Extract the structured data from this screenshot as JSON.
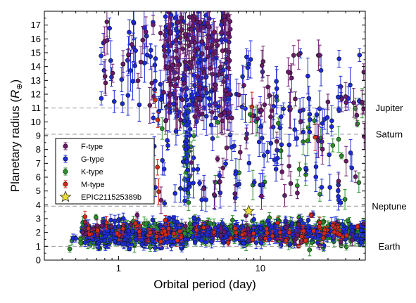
{
  "chart_data": {
    "type": "scatter",
    "xlabel": "Orbital period (day)",
    "ylabel_main": "Planetary radius (",
    "ylabel_symbol": "R",
    "ylabel_sub": "⊕",
    "ylabel_close": ")",
    "x_scale": "log",
    "xlim": [
      0.3,
      55
    ],
    "ylim": [
      0,
      18
    ],
    "x_ticks": [
      1,
      10
    ],
    "x_tick_labels": [
      "1",
      "10"
    ],
    "y_ticks": [
      0,
      1,
      2,
      3,
      4,
      5,
      6,
      7,
      8,
      9,
      10,
      11,
      12,
      13,
      14,
      15,
      16,
      17
    ],
    "y_tick_labels": [
      "0",
      "1",
      "2",
      "3",
      "4",
      "5",
      "6",
      "7",
      "8",
      "9",
      "10",
      "11",
      "12",
      "13",
      "14",
      "15",
      "16",
      "17"
    ],
    "reference_lines": [
      {
        "label": "Jupiter",
        "y": 11
      },
      {
        "label": "Saturn",
        "y": 9.1
      },
      {
        "label": "Neptune",
        "y": 3.9
      },
      {
        "label": "Earth",
        "y": 1.0
      }
    ],
    "legend_position": "left-middle",
    "series": [
      {
        "name": "F-type",
        "color": "#6b1a6b",
        "marker": "circle"
      },
      {
        "name": "G-type",
        "color": "#1c2bd6",
        "marker": "circle"
      },
      {
        "name": "K-type",
        "color": "#2a8f2a",
        "marker": "circle"
      },
      {
        "name": "M-type",
        "color": "#d42a1a",
        "marker": "circle"
      },
      {
        "name": "EPIC211525389b",
        "color": "#e8dc3a",
        "marker": "star"
      }
    ],
    "highlight_point": {
      "name": "EPIC211525389b",
      "x": 8.27,
      "y": 3.55
    },
    "seed": 7
  }
}
